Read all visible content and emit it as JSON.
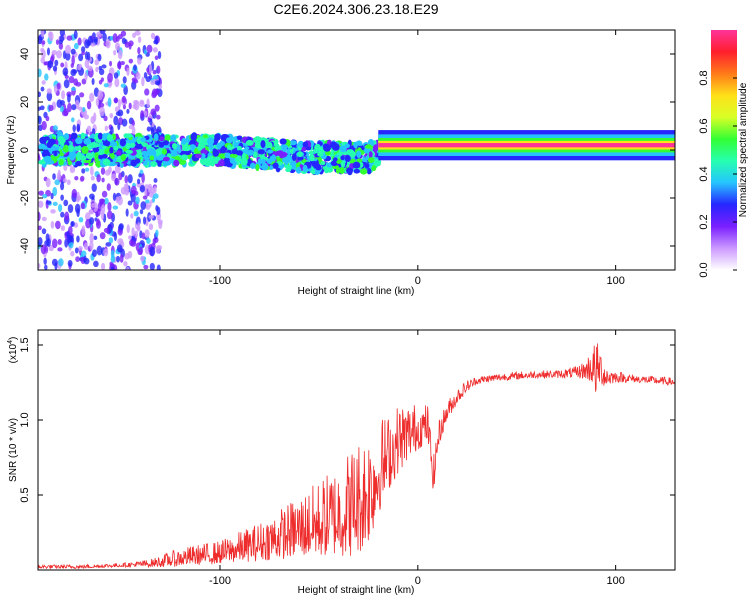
{
  "chart_data": [
    {
      "type": "heatmap",
      "title": "C2E6.2024.306.23.18.E29",
      "xlabel": "Height of straight line (km)",
      "ylabel": "Frequency (Hz)",
      "xlim": [
        -192,
        130
      ],
      "ylim": [
        -50,
        50
      ],
      "xticks": [
        -100,
        0,
        100
      ],
      "xtick_labels": [
        "-100",
        "0",
        "100"
      ],
      "yticks": [
        -40,
        -20,
        0,
        20,
        40
      ],
      "ytick_labels": [
        "-40",
        "-20",
        "0",
        "20",
        "40"
      ],
      "grid": false,
      "colorbar": {
        "label": "Normalized spectral amplitude",
        "range": [
          0,
          1
        ],
        "ticks": [
          0.0,
          0.2,
          0.4,
          0.6,
          0.8
        ],
        "tick_labels": [
          "0.0",
          "0.2",
          "0.4",
          "0.6",
          "0.8"
        ],
        "colormap": "rainbow",
        "colors": [
          "#ffffff",
          "#cc99ff",
          "#7a1fff",
          "#2626ff",
          "#26c4ff",
          "#26ffb0",
          "#33ff33",
          "#d8ff26",
          "#ffe019",
          "#ff7a19",
          "#ff1f2e",
          "#ff3399"
        ]
      },
      "description_bands": [
        {
          "x_from": -192,
          "x_to": -130,
          "freq_center": 0,
          "freq_halfwidth": 50,
          "amplitude": 0.15
        },
        {
          "x_from": -190,
          "x_to": -20,
          "freq_center": 0,
          "freq_halfwidth": 6,
          "amplitude": 0.35
        },
        {
          "x_from": -20,
          "x_to": 130,
          "freq_center": 2,
          "freq_halfwidth": 1.5,
          "amplitude": 0.95
        }
      ]
    },
    {
      "type": "line",
      "xlabel": "Height of straight line (km)",
      "ylabel": "SNR (10 * v/v)",
      "scale_note_base": "(x10",
      "scale_note_exp": "4",
      "scale_note_end": ")",
      "xlim": [
        -192,
        130
      ],
      "ylim": [
        0,
        1.6
      ],
      "xticks": [
        -100,
        0,
        100
      ],
      "xtick_labels": [
        "-100",
        "0",
        "100"
      ],
      "yticks": [
        0.5,
        1.0,
        1.5
      ],
      "ytick_labels": [
        "0.5",
        "1.0",
        "1.5"
      ],
      "grid": false,
      "series": [
        {
          "name": "SNR",
          "color": "#ee2c2c",
          "x": [
            -192,
            -170,
            -150,
            -135,
            -125,
            -115,
            -100,
            -90,
            -80,
            -70,
            -60,
            -50,
            -40,
            -35,
            -30,
            -25,
            -22,
            -20,
            -15,
            -10,
            -5,
            0,
            5,
            8,
            10,
            12,
            15,
            20,
            25,
            30,
            40,
            50,
            60,
            70,
            80,
            85,
            88,
            90,
            92,
            95,
            100,
            110,
            120,
            130
          ],
          "values": [
            0.02,
            0.02,
            0.03,
            0.04,
            0.06,
            0.08,
            0.1,
            0.13,
            0.16,
            0.2,
            0.24,
            0.28,
            0.33,
            0.36,
            0.4,
            0.47,
            0.55,
            0.62,
            0.72,
            0.82,
            0.88,
            0.92,
            0.95,
            0.6,
            0.85,
            0.95,
            1.05,
            1.15,
            1.22,
            1.26,
            1.28,
            1.29,
            1.3,
            1.3,
            1.31,
            1.32,
            1.34,
            1.3,
            1.33,
            1.28,
            1.28,
            1.27,
            1.26,
            1.25
          ],
          "noise_amplitude": [
            0.01,
            0.01,
            0.01,
            0.02,
            0.04,
            0.05,
            0.06,
            0.08,
            0.1,
            0.13,
            0.16,
            0.2,
            0.24,
            0.28,
            0.3,
            0.3,
            0.28,
            0.25,
            0.2,
            0.18,
            0.15,
            0.12,
            0.1,
            0.1,
            0.08,
            0.06,
            0.05,
            0.04,
            0.03,
            0.02,
            0.02,
            0.02,
            0.02,
            0.02,
            0.03,
            0.05,
            0.1,
            0.15,
            0.1,
            0.06,
            0.03,
            0.02,
            0.02,
            0.02
          ]
        }
      ]
    }
  ]
}
